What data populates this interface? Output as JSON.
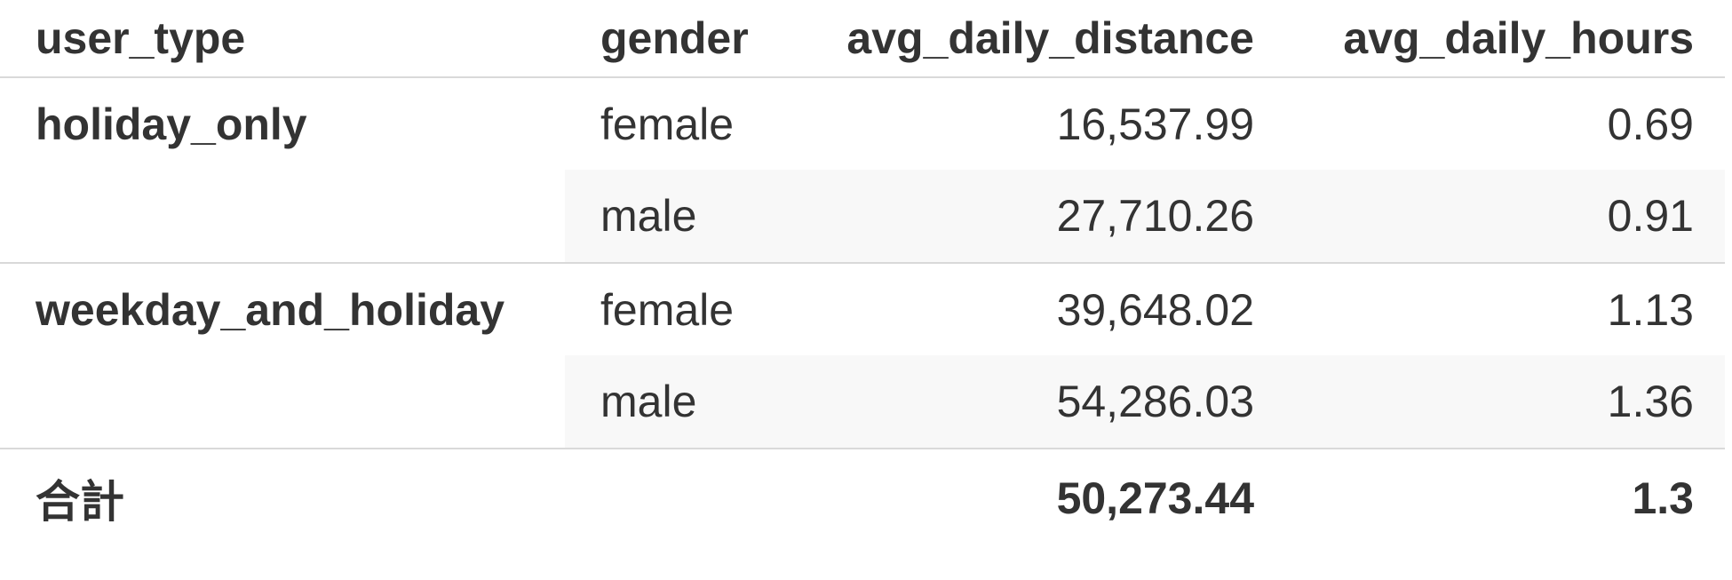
{
  "table": {
    "columns": [
      "user_type",
      "gender",
      "avg_daily_distance",
      "avg_daily_hours"
    ],
    "groups": [
      {
        "user_type": "holiday_only",
        "rows": [
          {
            "gender": "female",
            "avg_daily_distance": "16,537.99",
            "avg_daily_hours": "0.69"
          },
          {
            "gender": "male",
            "avg_daily_distance": "27,710.26",
            "avg_daily_hours": "0.91"
          }
        ]
      },
      {
        "user_type": "weekday_and_holiday",
        "rows": [
          {
            "gender": "female",
            "avg_daily_distance": "39,648.02",
            "avg_daily_hours": "1.13"
          },
          {
            "gender": "male",
            "avg_daily_distance": "54,286.03",
            "avg_daily_hours": "1.36"
          }
        ]
      }
    ],
    "total": {
      "label": "合計",
      "avg_daily_distance": "50,273.44",
      "avg_daily_hours": "1.3"
    }
  }
}
